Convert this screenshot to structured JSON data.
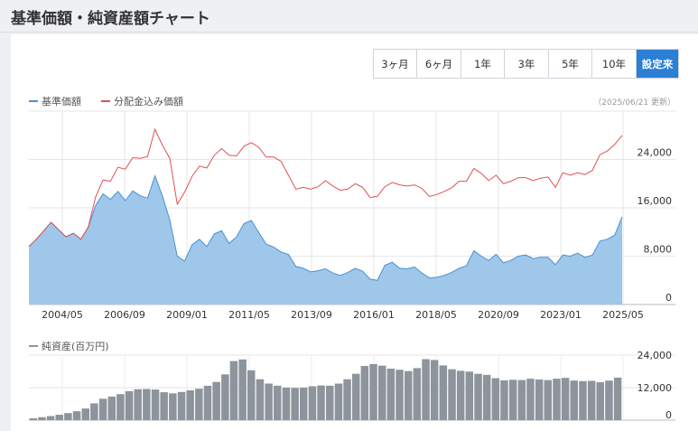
{
  "header": {
    "title": "基準価額・純資産額チャート"
  },
  "range_buttons": [
    {
      "label": "3ヶ月",
      "active": false
    },
    {
      "label": "6ヶ月",
      "active": false
    },
    {
      "label": "1年",
      "active": false
    },
    {
      "label": "3年",
      "active": false
    },
    {
      "label": "5年",
      "active": false
    },
    {
      "label": "10年",
      "active": false
    },
    {
      "label": "設定来",
      "active": true
    }
  ],
  "update_note": "（2025/06/21 更新）",
  "colors": {
    "nav_fill": "#9fc7ea",
    "nav_line": "#4a90d2",
    "dist_line": "#e05050",
    "bar": "#8d949c",
    "accent": "#2b7fd4"
  },
  "chart_data": [
    {
      "type": "area",
      "x_ticks": [
        "2004/05",
        "2006/09",
        "2009/01",
        "2011/05",
        "2013/09",
        "2016/01",
        "2018/05",
        "2020/09",
        "2023/01",
        "2025/05"
      ],
      "y_ticks": [
        "24,000",
        "16,000",
        "8,000",
        "0"
      ],
      "ylim": [
        0,
        32000
      ],
      "series": [
        {
          "name": "基準価額",
          "values": [
            9600,
            10800,
            12200,
            13600,
            12400,
            11200,
            11800,
            10800,
            12800,
            16400,
            18300,
            17400,
            18700,
            17200,
            18800,
            18000,
            17600,
            21300,
            18000,
            14000,
            8000,
            7200,
            9900,
            10800,
            9600,
            11700,
            12200,
            10100,
            11200,
            13400,
            13900,
            11900,
            10000,
            9500,
            8700,
            8300,
            6300,
            6000,
            5400,
            5600,
            5900,
            5200,
            4800,
            5300,
            6000,
            5500,
            4200,
            4000,
            6500,
            7000,
            6000,
            5900,
            6200,
            5200,
            4400,
            4500,
            4800,
            5300,
            6000,
            6400,
            8900,
            8000,
            7300,
            8300,
            6900,
            7300,
            8000,
            8200,
            7600,
            7800,
            7800,
            6600,
            8200,
            8000,
            8500,
            7800,
            8200,
            10500,
            10800,
            11500,
            14500
          ]
        },
        {
          "name": "分配金込み価額",
          "values": [
            9600,
            10800,
            12200,
            13600,
            12400,
            11200,
            11800,
            10800,
            12800,
            17800,
            20600,
            20400,
            22700,
            22400,
            24300,
            24200,
            24500,
            29000,
            26400,
            24200,
            16600,
            18600,
            21200,
            22900,
            22600,
            24700,
            25800,
            24700,
            24600,
            26200,
            26800,
            26000,
            24400,
            24400,
            23700,
            21400,
            19100,
            19400,
            19100,
            19500,
            20500,
            19600,
            18900,
            19100,
            20000,
            19400,
            17700,
            17900,
            19500,
            20200,
            19800,
            19600,
            19800,
            19200,
            17900,
            18200,
            18700,
            19300,
            20400,
            20400,
            22500,
            21700,
            20500,
            21400,
            20000,
            20400,
            21000,
            21000,
            20500,
            20900,
            21100,
            19400,
            21800,
            21400,
            21800,
            21500,
            22200,
            24800,
            25400,
            26500,
            28000
          ]
        }
      ]
    },
    {
      "type": "bar",
      "x_ticks": [
        "2004/05",
        "2006/09",
        "2009/01",
        "2011/05",
        "2013/09",
        "2016/01",
        "2018/05",
        "2020/09",
        "2023/01",
        "2025/05"
      ],
      "y_ticks": [
        "24,000",
        "12,000",
        "0"
      ],
      "ylim": [
        0,
        24000
      ],
      "series": [
        {
          "name": "純資産(百万円)",
          "values": [
            700,
            1100,
            1500,
            2000,
            2600,
            3300,
            4300,
            6200,
            7900,
            8700,
            9600,
            10700,
            11400,
            11500,
            11300,
            10300,
            9900,
            10400,
            11000,
            11600,
            12700,
            14100,
            16900,
            21800,
            22400,
            18400,
            15100,
            13500,
            12700,
            12000,
            11900,
            12000,
            12500,
            12800,
            12700,
            13500,
            15100,
            17100,
            20000,
            20700,
            20100,
            19000,
            18600,
            18100,
            19200,
            22500,
            22200,
            20200,
            18800,
            18200,
            17900,
            17100,
            16700,
            15500,
            14700,
            14900,
            14800,
            15300,
            15000,
            14800,
            15300,
            15600,
            14600,
            14400,
            14500,
            14000,
            14600,
            15700
          ]
        }
      ]
    }
  ]
}
